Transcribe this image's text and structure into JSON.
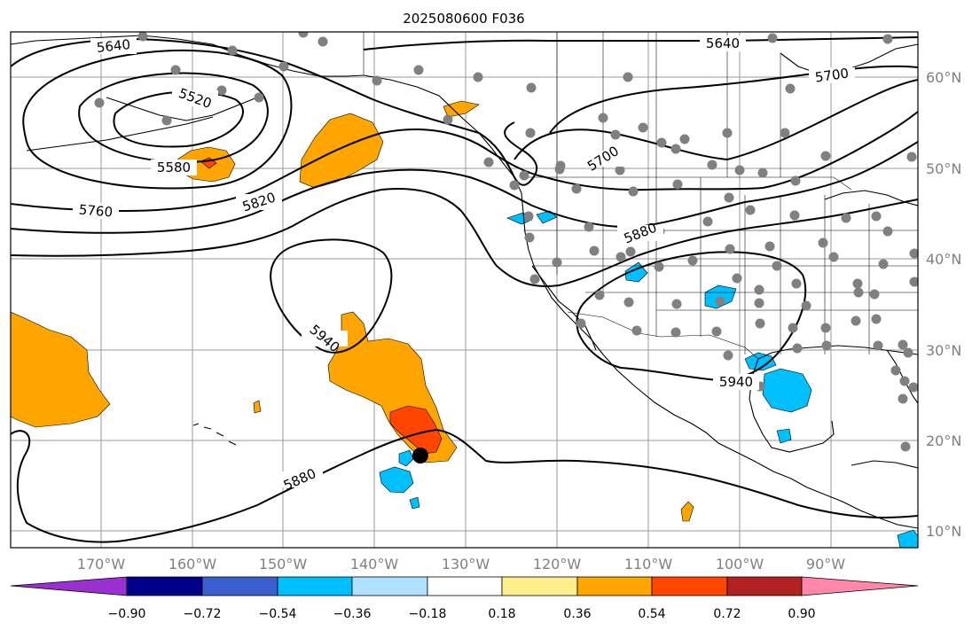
{
  "title": "2025080600 F036",
  "lon_labels": [
    "170°W",
    "160°W",
    "150°W",
    "140°W",
    "130°W",
    "120°W",
    "110°W",
    "100°W",
    "90°W"
  ],
  "lat_labels": [
    "60°N",
    "50°N",
    "40°N",
    "30°N",
    "20°N",
    "10°N"
  ],
  "contour_labels": [
    "5640",
    "5520",
    "5580",
    "5760",
    "5820",
    "5640",
    "5700",
    "5700",
    "5880",
    "5940",
    "5940",
    "5880"
  ],
  "colorbar": {
    "tick_labels": [
      "−0.90",
      "−0.72",
      "−0.54",
      "−0.36",
      "−0.18",
      "0.18",
      "0.36",
      "0.54",
      "0.72",
      "0.90"
    ],
    "colors": [
      "#9b30d0",
      "#00008b",
      "#3a5fcd",
      "#00bfff",
      "#b0e2ff",
      "#ffffff",
      "#ffee8c",
      "#ffa500",
      "#ff4500",
      "#b22222",
      "#ff88aa"
    ]
  },
  "colors": {
    "orange": "#ffa500",
    "red": "#ff4500",
    "cyan": "#00bfff",
    "station": "#808080",
    "marker": "#000000"
  }
}
